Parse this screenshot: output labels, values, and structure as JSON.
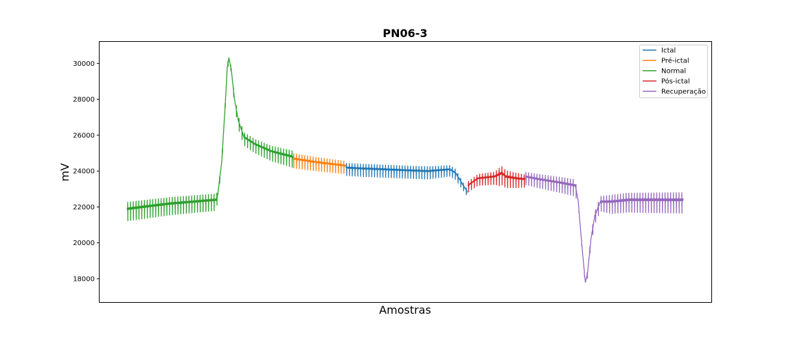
{
  "chart_data": {
    "type": "line",
    "title": "PN06-3",
    "xlabel": "Amostras",
    "ylabel": "mV",
    "x_ticks_visible": false,
    "x_range": [
      0,
      1000
    ],
    "ylim": [
      16700,
      31200
    ],
    "y_ticks": [
      18000,
      20000,
      22000,
      24000,
      26000,
      28000,
      30000
    ],
    "y_tick_labels": [
      "18000",
      "20000",
      "22000",
      "24000",
      "26000",
      "28000",
      "30000"
    ],
    "grid": false,
    "legend_position": "top-right",
    "series": [
      {
        "name": "Ictal",
        "color": "#1f77b4",
        "segments": [
          {
            "baseline": [
              [
                393,
                24200
              ],
              [
                420,
                24150
              ],
              [
                460,
                24100
              ],
              [
                500,
                24050
              ],
              [
                540,
                24000
              ],
              [
                580,
                24100
              ],
              [
                590,
                23900
              ],
              [
                600,
                23400
              ],
              [
                612,
                22800
              ]
            ],
            "spread": [
              [
                393,
                300
              ],
              [
                540,
                300
              ],
              [
                590,
                250
              ],
              [
                612,
                150
              ]
            ]
          }
        ]
      },
      {
        "name": "Pré-ictal",
        "color": "#ff7f0e",
        "segments": [
          {
            "baseline": [
              [
                298,
                24700
              ],
              [
                340,
                24500
              ],
              [
                393,
                24300
              ]
            ],
            "spread": [
              [
                298,
                350
              ],
              [
                393,
                300
              ]
            ]
          }
        ]
      },
      {
        "name": "Normal",
        "color": "#2ca02c",
        "segments": [
          {
            "baseline": [
              [
                0,
                21900
              ],
              [
                40,
                22050
              ],
              [
                80,
                22200
              ],
              [
                120,
                22300
              ],
              [
                160,
                22400
              ],
              [
                163,
                22700
              ],
              [
                170,
                24500
              ],
              [
                176,
                27500
              ],
              [
                180,
                29800
              ],
              [
                183,
                30300
              ],
              [
                187,
                29700
              ],
              [
                193,
                28000
              ],
              [
                200,
                26800
              ],
              [
                210,
                25900
              ],
              [
                230,
                25500
              ],
              [
                260,
                25100
              ],
              [
                298,
                24800
              ]
            ],
            "spread": [
              [
                0,
                450
              ],
              [
                160,
                400
              ],
              [
                163,
                200
              ],
              [
                187,
                120
              ],
              [
                200,
                300
              ],
              [
                298,
                400
              ]
            ]
          }
        ]
      },
      {
        "name": "Pós-ictal",
        "color": "#d62728",
        "segments": [
          {
            "baseline": [
              [
                612,
                23200
              ],
              [
                630,
                23600
              ],
              [
                660,
                23700
              ],
              [
                673,
                23900
              ],
              [
                680,
                23700
              ],
              [
                700,
                23600
              ],
              [
                715,
                23550
              ]
            ],
            "spread": [
              [
                612,
                250
              ],
              [
                660,
                300
              ],
              [
                670,
                450
              ],
              [
                715,
                300
              ]
            ]
          }
        ]
      },
      {
        "name": "Recuperação",
        "color": "#9467bd",
        "segments": [
          {
            "baseline": [
              [
                715,
                23700
              ],
              [
                740,
                23550
              ],
              [
                780,
                23350
              ],
              [
                805,
                23200
              ],
              [
                810,
                22400
              ],
              [
                815,
                20500
              ],
              [
                820,
                18800
              ],
              [
                823,
                17800
              ],
              [
                827,
                18300
              ],
              [
                833,
                20200
              ],
              [
                840,
                21500
              ],
              [
                850,
                22300
              ],
              [
                870,
                22300
              ],
              [
                900,
                22400
              ],
              [
                950,
                22400
              ],
              [
                999,
                22400
              ]
            ],
            "spread": [
              [
                715,
                300
              ],
              [
                805,
                400
              ],
              [
                810,
                100
              ],
              [
                827,
                150
              ],
              [
                840,
                300
              ],
              [
                870,
                450
              ],
              [
                999,
                500
              ]
            ]
          }
        ]
      }
    ]
  }
}
